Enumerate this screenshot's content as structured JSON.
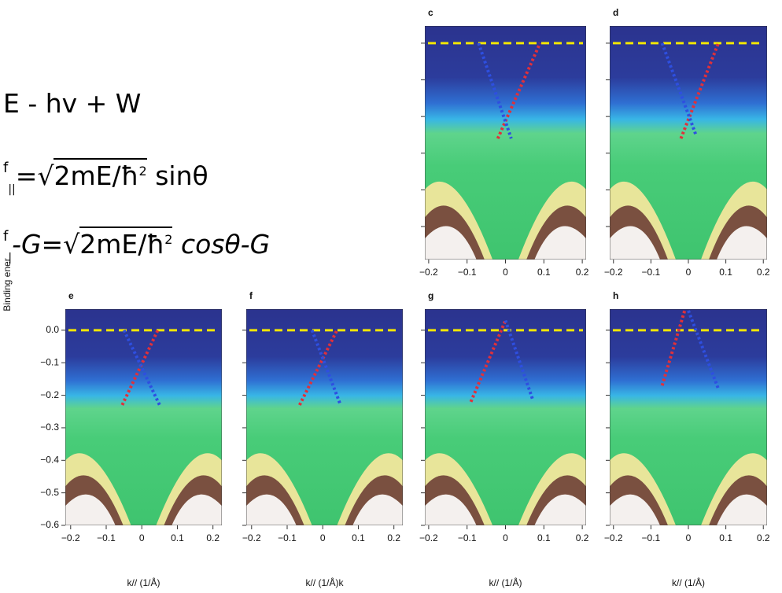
{
  "equations": [
    {
      "text": "E - hv + W"
    },
    {
      "k_sup": "f",
      "k_sub": "||",
      "relation": "=",
      "radicand": "2mE/ħ",
      "power": "2",
      "trig": "sinθ"
    },
    {
      "k_sup": "f",
      "k_sub": "|",
      "relation": "-G=",
      "radicand": "2mE/ħ",
      "power": "2",
      "trig": "cosθ-G"
    }
  ],
  "y_axis_label": "Binding ener",
  "chart_data": [
    {
      "type": "arpes",
      "label": "c",
      "xlim": [
        -0.21,
        0.21
      ],
      "ylim": [
        -0.59,
        0.047
      ],
      "xticks": [
        {
          "value": -0.2,
          "label": "−0.2"
        },
        {
          "value": -0.1,
          "label": "−0.1"
        },
        0,
        0.1,
        0.2
      ],
      "yticks": [
        0,
        -0.1,
        -0.2,
        -0.3,
        -0.4,
        -0.5
      ],
      "fermi_level": 0,
      "dispersions": [
        {
          "color": "#e0303a",
          "k": [
            -0.02,
            0.09
          ],
          "E": [
            -0.26,
            0
          ]
        },
        {
          "color": "#2e4fe0",
          "k": [
            -0.07,
            0.015
          ],
          "E": [
            0,
            -0.26
          ]
        }
      ]
    },
    {
      "type": "arpes",
      "label": "d",
      "xlim": [
        -0.21,
        0.21
      ],
      "ylim": [
        -0.59,
        0.047
      ],
      "xticks": [
        {
          "value": -0.2,
          "label": "−0.2"
        },
        {
          "value": -0.1,
          "label": "−0.1"
        },
        0,
        0.1,
        0.2
      ],
      "yticks": [
        0,
        -0.1,
        -0.2,
        -0.3,
        -0.4,
        -0.5
      ],
      "fermi_level": 0,
      "dispersions": [
        {
          "color": "#e0303a",
          "k": [
            -0.02,
            0.08
          ],
          "E": [
            -0.26,
            0
          ]
        },
        {
          "color": "#2e4fe0",
          "k": [
            -0.07,
            0.02
          ],
          "E": [
            0,
            -0.25
          ]
        }
      ]
    },
    {
      "type": "arpes",
      "label": "e",
      "xlim": [
        -0.215,
        0.225
      ],
      "ylim": [
        -0.6,
        0.065
      ],
      "xlabel": "k// (1/Å)",
      "xticks": [
        {
          "value": -0.2,
          "label": "−0.2"
        },
        {
          "value": -0.1,
          "label": "−0.1"
        },
        0,
        0.1,
        0.2
      ],
      "yticks": [
        {
          "value": 0,
          "label": "0.0"
        },
        {
          "value": -0.1,
          "label": "−0.1"
        },
        {
          "value": -0.2,
          "label": "−0.2"
        },
        {
          "value": -0.3,
          "label": "−0.3"
        },
        {
          "value": -0.4,
          "label": "−0.4"
        },
        {
          "value": -0.5,
          "label": "−0.5"
        },
        {
          "value": -0.6,
          "label": "−0.6"
        }
      ],
      "ytick_labels": true,
      "fermi_level": 0,
      "dispersions": [
        {
          "color": "#e0303a",
          "k": [
            -0.055,
            0.045
          ],
          "E": [
            -0.23,
            0
          ]
        },
        {
          "color": "#2e4fe0",
          "k": [
            -0.05,
            0.05
          ],
          "E": [
            0,
            -0.23
          ]
        }
      ]
    },
    {
      "type": "arpes",
      "label": "f",
      "xlim": [
        -0.215,
        0.225
      ],
      "ylim": [
        -0.6,
        0.065
      ],
      "xlabel": "k// (1/Å)k",
      "xticks": [
        {
          "value": -0.2,
          "label": "−0.2"
        },
        {
          "value": -0.1,
          "label": "−0.1"
        },
        0,
        0.1,
        0.2
      ],
      "yticks": [
        0,
        -0.1,
        -0.2,
        -0.3,
        -0.4,
        -0.5,
        -0.6
      ],
      "ytick_labels": false,
      "fermi_level": 0,
      "dispersions": [
        {
          "color": "#e0303a",
          "k": [
            -0.065,
            0.04
          ],
          "E": [
            -0.23,
            0
          ]
        },
        {
          "color": "#2e4fe0",
          "k": [
            -0.03,
            0.05
          ],
          "E": [
            0,
            -0.23
          ]
        }
      ]
    },
    {
      "type": "arpes",
      "label": "g",
      "xlim": [
        -0.21,
        0.21
      ],
      "ylim": [
        -0.6,
        0.065
      ],
      "xlabel": "k// (1/Å)",
      "xticks": [
        {
          "value": -0.2,
          "label": "−0.2"
        },
        {
          "value": -0.1,
          "label": "−0.1"
        },
        0,
        0.1,
        0.2
      ],
      "yticks": [
        0,
        -0.1,
        -0.2,
        -0.3,
        -0.4,
        -0.5,
        -0.6
      ],
      "ytick_labels": false,
      "fermi_level": 0,
      "dispersions": [
        {
          "color": "#e0303a",
          "k": [
            -0.09,
            0.0
          ],
          "E": [
            -0.22,
            0.03
          ]
        },
        {
          "color": "#2e4fe0",
          "k": [
            0.0,
            0.07
          ],
          "E": [
            0.03,
            -0.21
          ]
        }
      ]
    },
    {
      "type": "arpes",
      "label": "h",
      "xlim": [
        -0.21,
        0.21
      ],
      "ylim": [
        -0.6,
        0.065
      ],
      "xlabel": "k// (1/Å)",
      "xticks": [
        {
          "value": -0.2,
          "label": "−0.2"
        },
        {
          "value": -0.1,
          "label": "−0.1"
        },
        0,
        0.1,
        0.2
      ],
      "yticks": [
        0,
        -0.1,
        -0.2,
        -0.3,
        -0.4,
        -0.5,
        -0.6
      ],
      "ytick_labels": false,
      "fermi_level": 0,
      "dispersions": [
        {
          "color": "#e0303a",
          "k": [
            -0.07,
            -0.01
          ],
          "E": [
            -0.17,
            0.06
          ]
        },
        {
          "color": "#2e4fe0",
          "k": [
            0.0,
            0.08
          ],
          "E": [
            0.06,
            -0.18
          ]
        }
      ]
    }
  ]
}
